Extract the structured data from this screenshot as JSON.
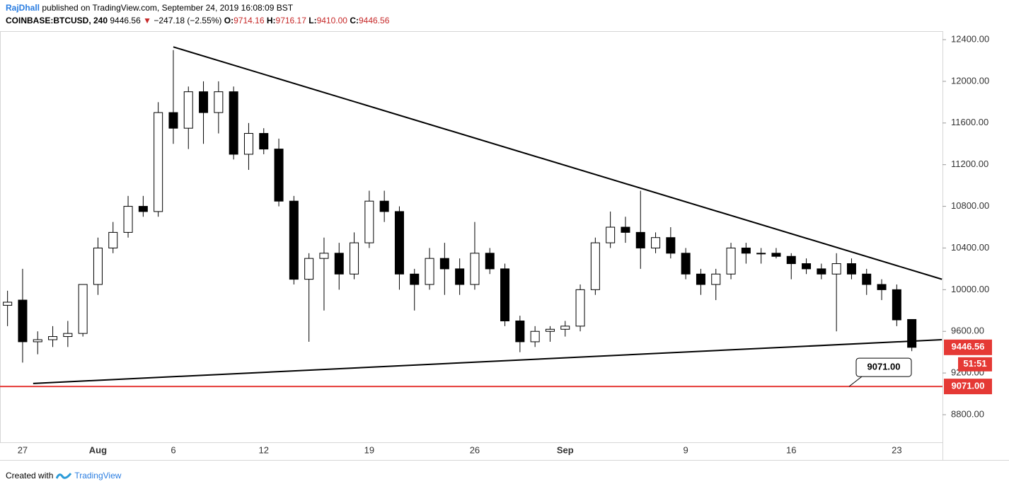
{
  "header": {
    "author": "RajDhall",
    "published": "published on TradingView.com, September 24, 2019 16:08:09 BST",
    "symbol": "COINBASE:BTCUSD, 240",
    "last": "9446.56",
    "arrow": "▼",
    "change": "−247.18 (−2.55%)",
    "o_label": "O:",
    "o": "9714.16",
    "h_label": "H:",
    "h": "9716.17",
    "l_label": "L:",
    "l": "9410.00",
    "c_label": "C:",
    "c": "9446.56"
  },
  "footer": {
    "created": "Created with",
    "brand": "TradingView"
  },
  "chart_data": {
    "type": "candlestick",
    "categories": [
      null,
      "27",
      null,
      null,
      null,
      null,
      "Aug",
      null,
      null,
      null,
      null,
      "6",
      null,
      null,
      null,
      null,
      null,
      "12",
      null,
      null,
      null,
      null,
      null,
      null,
      "19",
      null,
      null,
      null,
      null,
      null,
      null,
      "26",
      null,
      null,
      null,
      null,
      null,
      "Sep",
      null,
      null,
      null,
      null,
      null,
      null,
      null,
      "9",
      null,
      null,
      null,
      null,
      null,
      null,
      "16",
      null,
      null,
      null,
      null,
      null,
      null,
      "23",
      null
    ],
    "open": [
      9850,
      9900,
      9500,
      9520,
      9550,
      9580,
      10050,
      10400,
      10550,
      10800,
      10750,
      11700,
      11550,
      11900,
      11700,
      11900,
      11300,
      11500,
      11350,
      10850,
      10100,
      10300,
      10350,
      10150,
      10450,
      10850,
      10750,
      10150,
      10050,
      10300,
      10200,
      10050,
      10350,
      10200,
      9700,
      9500,
      9600,
      9620,
      9650,
      10000,
      10450,
      10600,
      10550,
      10400,
      10500,
      10350,
      10150,
      10050,
      10150,
      10400,
      10350,
      10350,
      10320,
      10250,
      10200,
      10150,
      10250,
      10150,
      10050,
      10000,
      9714.16
    ],
    "high": [
      9990,
      10200,
      9600,
      9650,
      9700,
      10050,
      10500,
      10650,
      10900,
      10900,
      11800,
      12300,
      11950,
      12000,
      12000,
      11950,
      11600,
      11550,
      11450,
      10900,
      10350,
      10500,
      10450,
      10550,
      10950,
      10950,
      10800,
      10200,
      10400,
      10450,
      10300,
      10650,
      10400,
      10250,
      9750,
      9650,
      9650,
      9700,
      10050,
      10500,
      10750,
      10700,
      10950,
      10550,
      10600,
      10400,
      10200,
      10200,
      10450,
      10450,
      10400,
      10400,
      10350,
      10300,
      10250,
      10350,
      10300,
      10200,
      10100,
      10050,
      9716.17
    ],
    "low": [
      9650,
      9300,
      9380,
      9450,
      9450,
      9550,
      9950,
      10350,
      10500,
      10700,
      10700,
      11400,
      11350,
      11400,
      11500,
      11250,
      11150,
      11300,
      10800,
      10050,
      9500,
      9800,
      10000,
      10100,
      10400,
      10650,
      10000,
      9800,
      10000,
      9950,
      9950,
      10000,
      10150,
      9650,
      9400,
      9450,
      9500,
      9550,
      9600,
      9950,
      10400,
      10450,
      10200,
      10350,
      10300,
      10100,
      9950,
      9900,
      10100,
      10250,
      10250,
      10300,
      10100,
      10150,
      10100,
      9600,
      10100,
      9950,
      9900,
      9650,
      9410
    ],
    "close": [
      9880,
      9500,
      9520,
      9550,
      9580,
      10050,
      10400,
      10550,
      10800,
      10750,
      11700,
      11550,
      11900,
      11700,
      11900,
      11300,
      11500,
      11350,
      10850,
      10100,
      10300,
      10350,
      10150,
      10450,
      10850,
      10750,
      10150,
      10050,
      10300,
      10200,
      10050,
      10350,
      10200,
      9700,
      9500,
      9600,
      9620,
      9650,
      10000,
      10450,
      10600,
      10550,
      10400,
      10500,
      10350,
      10150,
      10050,
      10150,
      10400,
      10350,
      10350,
      10320,
      10250,
      10200,
      10150,
      10250,
      10150,
      10050,
      10000,
      9710,
      9446.56
    ],
    "up_color": "#ffffff",
    "down_color": "#000000",
    "ylim": [
      8535,
      12475
    ],
    "yticks": [
      {
        "value": 8800,
        "label": "8800.00"
      },
      {
        "value": 9200,
        "label": "9200.00"
      },
      {
        "value": 9600,
        "label": "9600.00"
      },
      {
        "value": 10000,
        "label": "10000.00"
      },
      {
        "value": 10400,
        "label": "10400.00"
      },
      {
        "value": 10800,
        "label": "10800.00"
      },
      {
        "value": 11200,
        "label": "11200.00"
      },
      {
        "value": 11600,
        "label": "11600.00"
      },
      {
        "value": 12000,
        "label": "12000.00"
      },
      {
        "value": 12400,
        "label": "12400.00"
      }
    ],
    "trendlines": [
      {
        "from": [
          11.0,
          12330
        ],
        "to": [
          62.0,
          10100
        ]
      },
      {
        "from": [
          1.7,
          9100
        ],
        "to": [
          62.0,
          9520
        ]
      }
    ],
    "hline": {
      "value": 9071,
      "label": "9071.00",
      "color": "#e53935"
    },
    "callout": "9071.00",
    "last_price": {
      "value": 9446.56,
      "label": "9446.56",
      "countdown": "51:51",
      "color": "#e53935"
    }
  }
}
